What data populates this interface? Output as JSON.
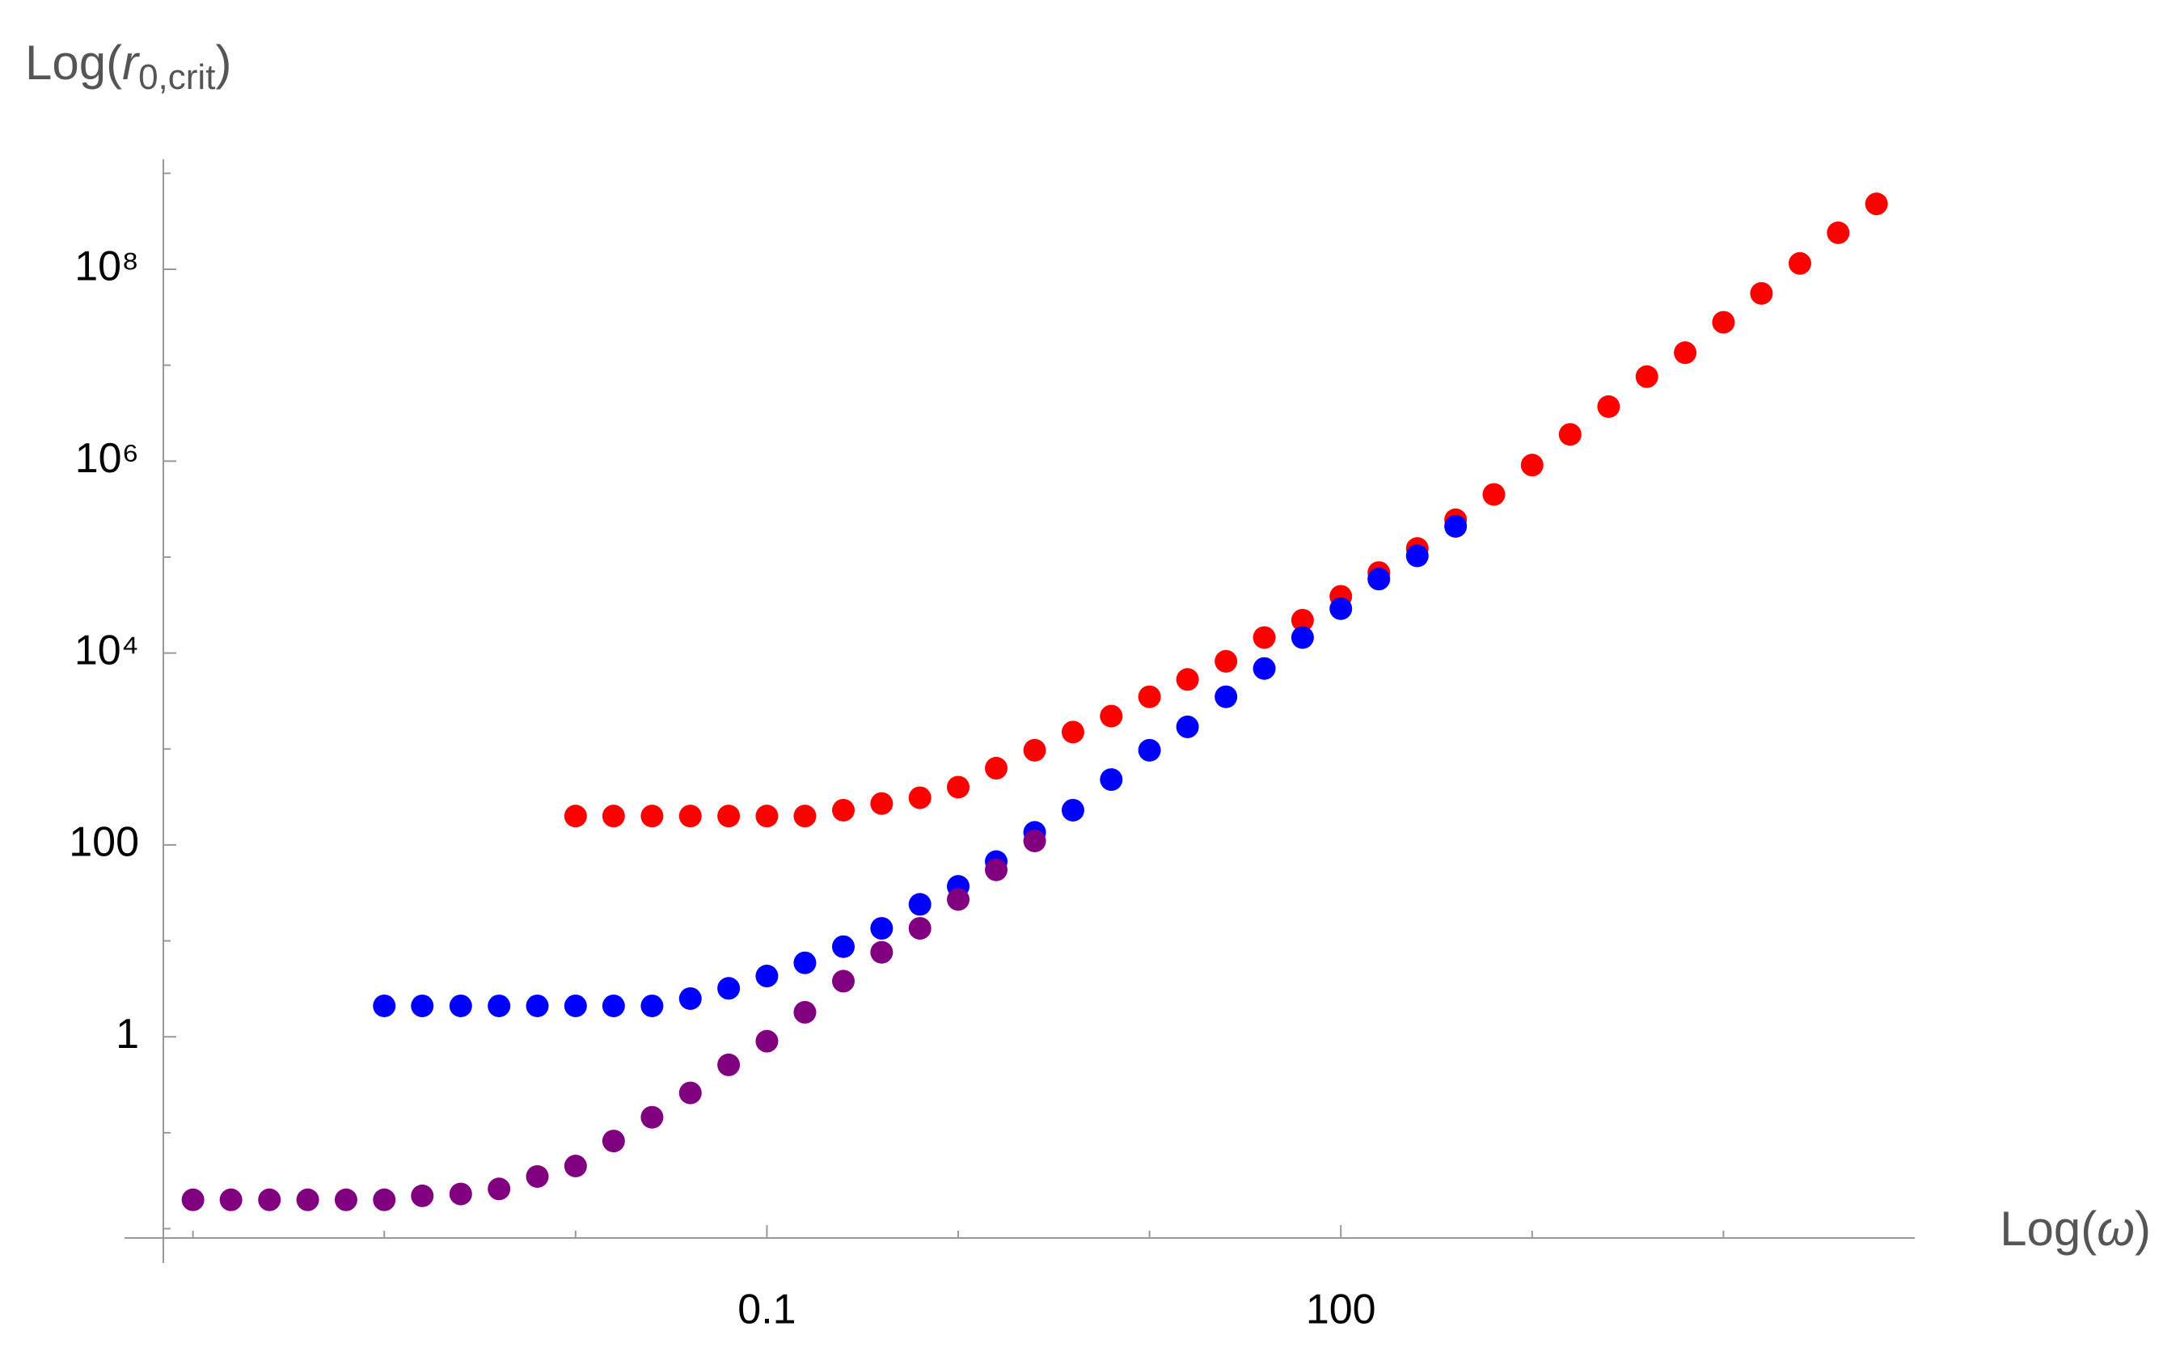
{
  "chart_data": {
    "type": "scatter",
    "ylabel": {
      "text": "Log(",
      "var": "r",
      "sub": "0,crit",
      "end": ")"
    },
    "xlabel": {
      "text": "Log(",
      "var": "ω",
      "end": ")"
    },
    "xscale": "log",
    "yscale": "log",
    "xlim": [
      7e-05,
      100000
    ],
    "ylim": [
      0.008,
      1400000000
    ],
    "xticks": [
      0.1,
      100
    ],
    "xminor": [
      0.0001,
      0.001,
      0.01,
      1,
      10,
      1000,
      10000
    ],
    "yticks": [
      1,
      100,
      {
        "value": 10000,
        "label": "10⁴"
      },
      {
        "value": 1000000,
        "label": "10⁶"
      },
      {
        "value": 100000000,
        "label": "10⁸"
      }
    ],
    "yminor": [
      0.01,
      0.1,
      10,
      1000,
      100000,
      10000000,
      1000000000
    ],
    "grid": false,
    "series": [
      {
        "color": "#ff0000",
        "x": [
          0.01,
          0.0158,
          0.0251,
          0.0398,
          0.0631,
          0.1,
          0.158,
          0.251,
          0.398,
          0.631,
          1,
          1.58,
          2.51,
          3.98,
          6.31,
          10,
          15.8,
          25.1,
          39.8,
          63.1,
          100,
          158,
          251,
          398,
          631,
          1000,
          1580,
          2510,
          3980,
          6310,
          10000,
          15800,
          25100,
          39800,
          63100
        ],
        "values": [
          200,
          200,
          200,
          200,
          200,
          200,
          200,
          230,
          270,
          310,
          400,
          630,
          970,
          1500,
          2200,
          3500,
          5300,
          8200,
          14500,
          22000,
          39000,
          69000,
          123000,
          245000,
          450000,
          910000,
          1900000,
          3700000,
          7600000,
          13500000,
          28000000,
          56000000,
          115000000,
          240000000,
          480000000
        ]
      },
      {
        "color": "#0000ff",
        "x": [
          0.001,
          0.00158,
          0.00251,
          0.00398,
          0.00631,
          0.01,
          0.0158,
          0.0251,
          0.0398,
          0.0631,
          0.1,
          0.158,
          0.251,
          0.398,
          0.631,
          1,
          1.58,
          2.51,
          3.98,
          6.31,
          10,
          15.8,
          25.1,
          39.8,
          63.1,
          100,
          158,
          251,
          398
        ],
        "values": [
          2.1,
          2.1,
          2.1,
          2.1,
          2.1,
          2.1,
          2.1,
          2.1,
          2.5,
          3.2,
          4.3,
          5.9,
          8.7,
          13.5,
          24,
          37,
          67,
          135,
          230,
          480,
          970,
          1700,
          3500,
          6900,
          14500,
          29000,
          59000,
          103000,
          209000
        ]
      },
      {
        "color": "#800080",
        "x": [
          0.0001,
          0.000158,
          0.000251,
          0.000398,
          0.000631,
          0.001,
          0.00158,
          0.00251,
          0.00398,
          0.00631,
          0.01,
          0.0158,
          0.0251,
          0.0398,
          0.0631,
          0.1,
          0.158,
          0.251,
          0.398,
          0.631,
          1,
          1.58,
          2.51
        ],
        "values": [
          0.02,
          0.02,
          0.02,
          0.02,
          0.02,
          0.02,
          0.022,
          0.023,
          0.026,
          0.035,
          0.045,
          0.082,
          0.145,
          0.26,
          0.51,
          0.9,
          1.8,
          3.8,
          7.6,
          13.5,
          27,
          55,
          110
        ]
      }
    ]
  }
}
